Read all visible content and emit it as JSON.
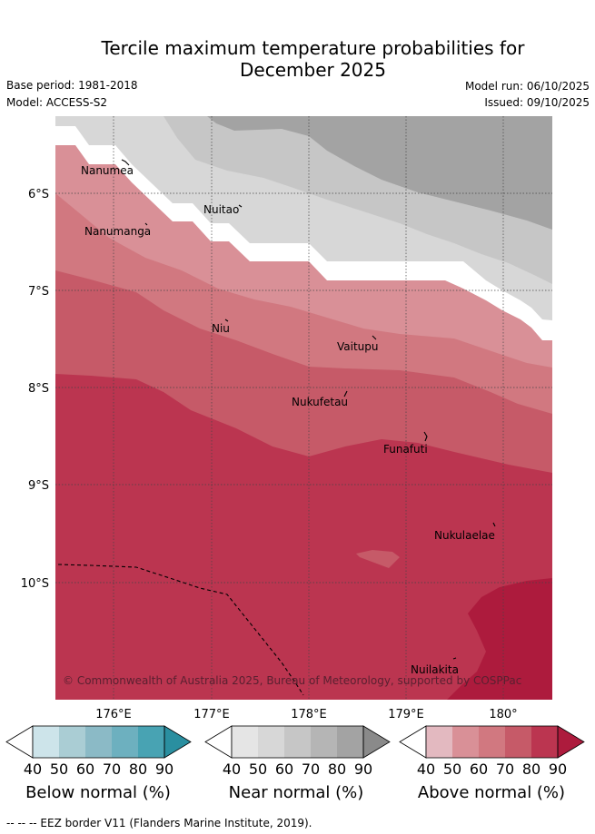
{
  "title_line1": "Tercile maximum temperature probabilities for",
  "title_line2": "December 2025",
  "base_period": "Base period: 1981-2018",
  "model": "Model: ACCESS-S2",
  "model_run": "Model run: 06/10/2025",
  "issued": "Issued: 09/10/2025",
  "copyright": "© Commonwealth of Australia 2025, Bureau of Meteorology, supported by COSPPac",
  "footer_note": "-- -- -- EEZ border V11 (Flanders Marine Institute, 2019).",
  "axes": {
    "lon_ticks": [
      "176°E",
      "177°E",
      "178°E",
      "179°E",
      "180°"
    ],
    "lat_ticks": [
      "6°S",
      "7°S",
      "8°S",
      "9°S",
      "10°S"
    ]
  },
  "places": [
    {
      "name": "Nanumea"
    },
    {
      "name": "Nuitao"
    },
    {
      "name": "Nanumanga"
    },
    {
      "name": "Niu"
    },
    {
      "name": "Vaitupu"
    },
    {
      "name": "Nukufetau"
    },
    {
      "name": "Funafuti"
    },
    {
      "name": "Nukulaelae"
    },
    {
      "name": "Nuilakita"
    }
  ],
  "colorbars": [
    {
      "label": "Below normal (%)",
      "ticks": [
        "40",
        "50",
        "60",
        "70",
        "80",
        "90"
      ],
      "colors": [
        "#cde4ea",
        "#aacdd4",
        "#8bbac6",
        "#6db0bf",
        "#48a3b3",
        "#2a8fa0"
      ]
    },
    {
      "label": "Near normal (%)",
      "ticks": [
        "40",
        "50",
        "60",
        "70",
        "80",
        "90"
      ],
      "colors": [
        "#e5e5e5",
        "#d7d7d7",
        "#c6c6c6",
        "#b5b5b5",
        "#a3a3a3",
        "#8a8a8a"
      ]
    },
    {
      "label": "Above normal (%)",
      "ticks": [
        "40",
        "50",
        "60",
        "70",
        "80",
        "90"
      ],
      "colors": [
        "#e3b9c0",
        "#d99097",
        "#d17880",
        "#c65a68",
        "#bb3550",
        "#ad1b3d"
      ]
    }
  ]
}
